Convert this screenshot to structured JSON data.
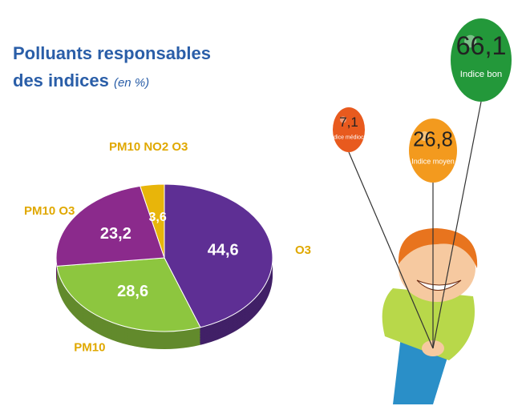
{
  "chart_data": [
    {
      "type": "pie",
      "title": "Polluants responsables des indices",
      "subtitle": "(en %)",
      "categories": [
        "O3",
        "PM10",
        "PM10 O3",
        "PM10 NO2 O3"
      ],
      "values": [
        44.6,
        28.6,
        23.2,
        3.6
      ],
      "value_labels": [
        "44,6",
        "28,6",
        "23,2",
        "3,6"
      ],
      "colors": [
        "#5e2f94",
        "#8dc63f",
        "#8b2a8c",
        "#e8b50a"
      ],
      "label_color": "#e0a800"
    },
    {
      "type": "balloon",
      "categories": [
        "Indice médiocre",
        "Indice moyen",
        "Indice bon"
      ],
      "values": [
        7.1,
        26.8,
        66.1
      ],
      "value_labels": [
        "7,1",
        "26,8",
        "66,1"
      ],
      "colors": [
        "#e85a1e",
        "#f39a1e",
        "#23983a"
      ]
    }
  ]
}
